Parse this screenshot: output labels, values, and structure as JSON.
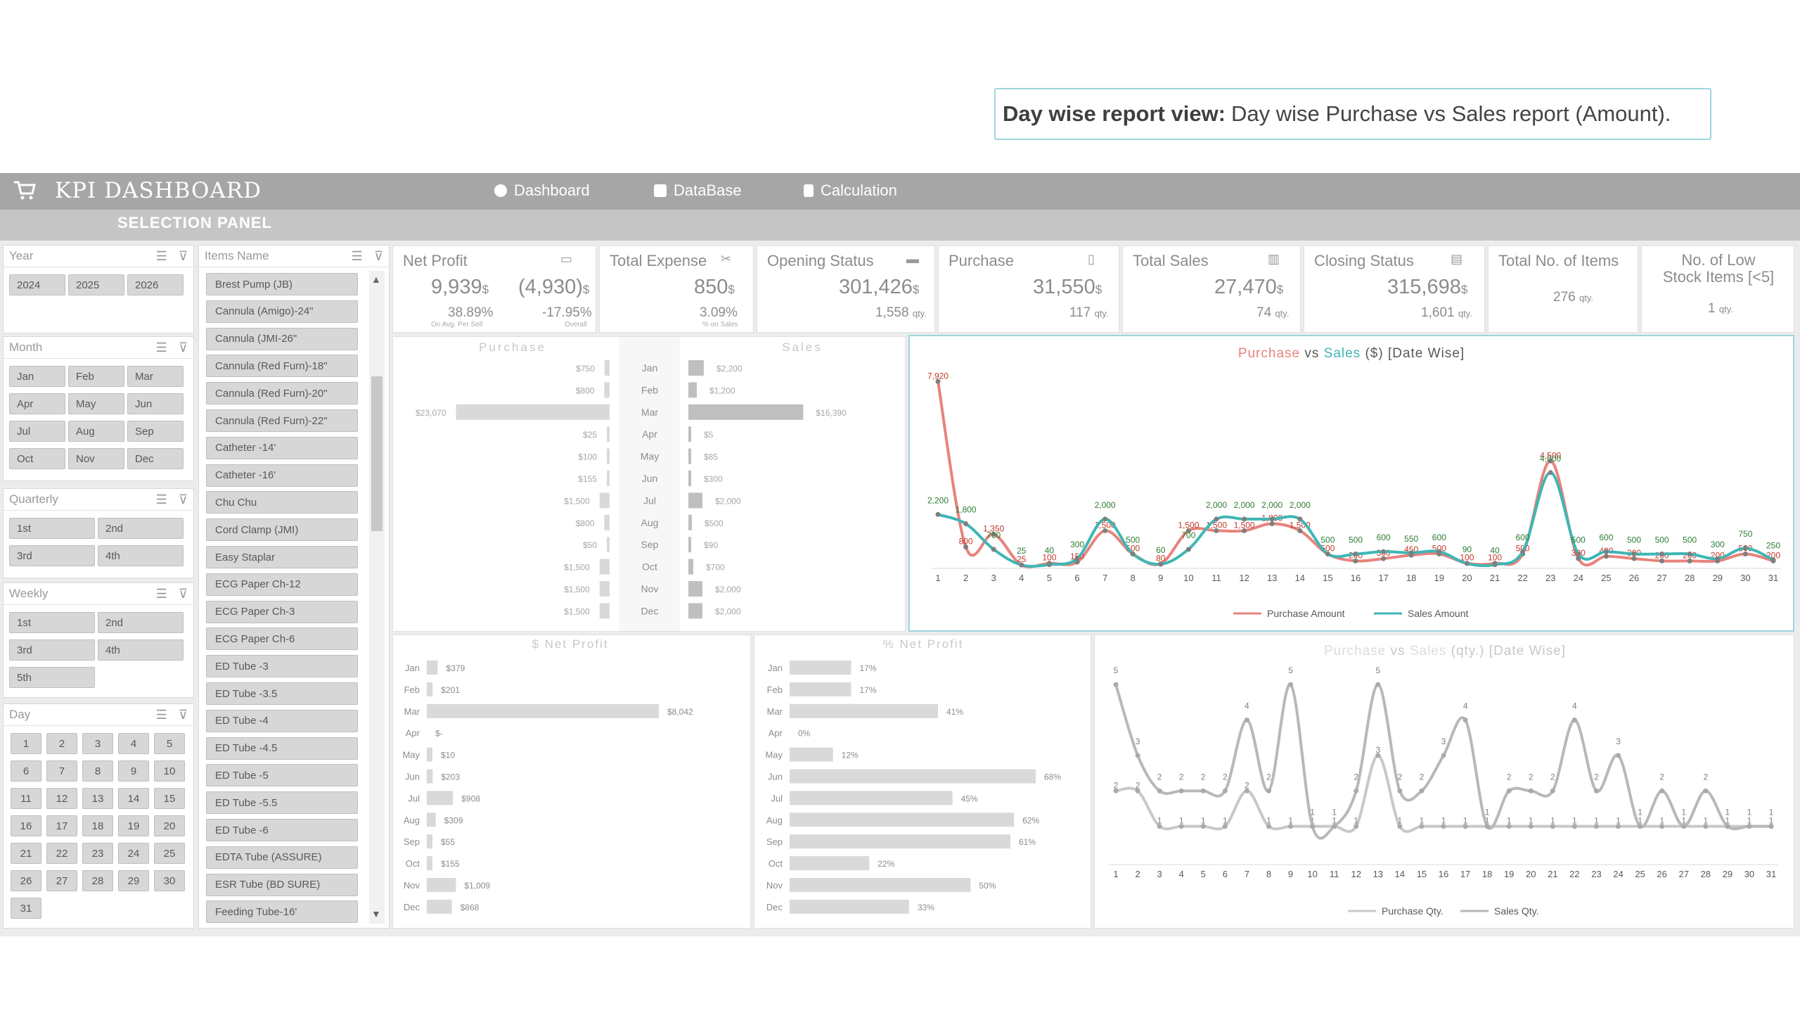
{
  "callout": {
    "bold": "Day wise report view:",
    "text": "Day wise Purchase vs Sales report (Amount)."
  },
  "header": {
    "title": "KPI DASHBOARD",
    "nav": [
      "Dashboard",
      "DataBase",
      "Calculation"
    ],
    "selection_panel": "SELECTION PANEL"
  },
  "slicers": {
    "year": {
      "title": "Year",
      "items": [
        "2024",
        "2025",
        "2026"
      ]
    },
    "month": {
      "title": "Month",
      "items": [
        "Jan",
        "Feb",
        "Mar",
        "Apr",
        "May",
        "Jun",
        "Jul",
        "Aug",
        "Sep",
        "Oct",
        "Nov",
        "Dec"
      ]
    },
    "quarterly": {
      "title": "Quarterly",
      "items": [
        "1st",
        "2nd",
        "3rd",
        "4th"
      ]
    },
    "weekly": {
      "title": "Weekly",
      "items": [
        "1st",
        "2nd",
        "3rd",
        "4th",
        "5th"
      ]
    },
    "day": {
      "title": "Day",
      "items": [
        "1",
        "2",
        "3",
        "4",
        "5",
        "6",
        "7",
        "8",
        "9",
        "10",
        "11",
        "12",
        "13",
        "14",
        "15",
        "16",
        "17",
        "18",
        "19",
        "20",
        "21",
        "22",
        "23",
        "24",
        "25",
        "26",
        "27",
        "28",
        "29",
        "30",
        "31"
      ]
    },
    "items": {
      "title": "Items Name",
      "items": [
        "Brest Pump (JB)",
        "Cannula (Amigo)-24\"",
        "Cannula (JMI-26\"",
        "Cannula (Red Furn)-18\"",
        "Cannula (Red Furn)-20\"",
        "Cannula (Red Furn)-22\"",
        "Catheter -14'",
        "Catheter -16'",
        "Chu Chu",
        "Cord Clamp (JMI)",
        "Easy Staplar",
        "ECG Paper Ch-12",
        "ECG Paper Ch-3",
        "ECG Paper Ch-6",
        "ED Tube -3",
        "ED Tube -3.5",
        "ED Tube -4",
        "ED Tube -4.5",
        "ED Tube -5",
        "ED Tube -5.5",
        "ED Tube -6",
        "EDTA Tube (ASSURE)",
        "ESR Tube (BD SURE)",
        "Feeding Tube-16'"
      ]
    }
  },
  "kpis": {
    "net_profit": {
      "title": "Net Profit",
      "value1": "9,939",
      "unit1": "$",
      "value2": "(4,930)",
      "unit2": "$",
      "pct1": "38.89%",
      "pct2": "-17.95%",
      "sub1": "On Avg. Per Sell",
      "sub2": "Overall"
    },
    "total_expense": {
      "title": "Total Expense",
      "value": "850",
      "unit": "$",
      "pct": "3.09%",
      "sub": "% on Sales"
    },
    "opening_status": {
      "title": "Opening Status",
      "value": "301,426",
      "unit": "$",
      "qty": "1,558",
      "qty_unit": "qty."
    },
    "purchase": {
      "title": "Purchase",
      "value": "31,550",
      "unit": "$",
      "qty": "117",
      "qty_unit": "qty."
    },
    "total_sales": {
      "title": "Total Sales",
      "value": "27,470",
      "unit": "$",
      "qty": "74",
      "qty_unit": "qty."
    },
    "closing_status": {
      "title": "Closing Status",
      "value": "315,698",
      "unit": "$",
      "qty": "1,601",
      "qty_unit": "qty."
    },
    "total_items": {
      "title": "Total No. of Items",
      "value": "276",
      "unit": "qty."
    },
    "low_stock": {
      "title_line1": "No. of Low",
      "title_line2": "Stock Items [<5]",
      "value": "1",
      "unit": "qty."
    }
  },
  "chart_data": [
    {
      "id": "monthly_purchase_sales",
      "type": "bar",
      "titles": {
        "left": "Purchase",
        "right": "Sales"
      },
      "categories": [
        "Jan",
        "Feb",
        "Mar",
        "Apr",
        "May",
        "Jun",
        "Jul",
        "Aug",
        "Sep",
        "Oct",
        "Nov",
        "Dec"
      ],
      "series": [
        {
          "name": "Purchase",
          "values": [
            750,
            800,
            23070,
            25,
            100,
            155,
            1500,
            800,
            50,
            1500,
            1500,
            1500
          ],
          "labels": [
            "$750",
            "$800",
            "$23,070",
            "$25",
            "$100",
            "$155",
            "$1,500",
            "$800",
            "$50",
            "$1,500",
            "$1,500",
            "$1,500"
          ]
        },
        {
          "name": "Sales",
          "values": [
            2200,
            1200,
            16390,
            5,
            85,
            300,
            2000,
            500,
            90,
            700,
            2000,
            2000
          ],
          "labels": [
            "$2,200",
            "$1,200",
            "$16,390",
            "$5",
            "$85",
            "$300",
            "$2,000",
            "$500",
            "$90",
            "$700",
            "$2,000",
            "$2,000"
          ]
        }
      ]
    },
    {
      "id": "datewise_amount",
      "type": "line",
      "title_parts": [
        "Purchase",
        "vs",
        "Sales",
        "($)",
        "[Date",
        "Wise]"
      ],
      "x": [
        1,
        2,
        3,
        4,
        5,
        6,
        7,
        8,
        9,
        10,
        11,
        12,
        13,
        14,
        15,
        16,
        17,
        18,
        19,
        20,
        21,
        22,
        23,
        24,
        25,
        26,
        27,
        28,
        29,
        30,
        31
      ],
      "series": [
        {
          "name": "Purchase Amount",
          "values": [
            7920,
            800,
            1350,
            25,
            100,
            150,
            1500,
            500,
            80,
            1500,
            1500,
            1500,
            1800,
            1500,
            500,
            200,
            300,
            450,
            500,
            100,
            100,
            500,
            4500,
            300,
            400,
            300,
            200,
            200,
            200,
            500,
            200
          ],
          "color": "#e8837c"
        },
        {
          "name": "Sales Amount",
          "values": [
            2200,
            1800,
            700,
            25,
            40,
            300,
            2000,
            500,
            60,
            700,
            2000,
            2000,
            2000,
            2000,
            500,
            500,
            600,
            550,
            600,
            90,
            40,
            600,
            4000,
            500,
            600,
            500,
            500,
            500,
            300,
            750,
            250
          ],
          "color": "#3fb6b5"
        }
      ],
      "point_labels": {
        "Purchase Amount": [
          "7,920",
          "800",
          "1,350",
          "25",
          "100",
          "150",
          "1,500",
          "500",
          "80",
          "1,500",
          "1,500",
          "1,500",
          "1,800",
          "1,500",
          "500",
          "200",
          "300",
          "450",
          "500",
          "100",
          "100",
          "500",
          "4,500",
          "300",
          "400",
          "300",
          "200",
          "200",
          "200",
          "500",
          "200"
        ],
        "Sales Amount": [
          "2,200",
          "1,800",
          "700",
          "25",
          "40",
          "300",
          "2,000",
          "500",
          "60",
          "700",
          "2,000",
          "2,000",
          "2,000",
          "2,000",
          "500",
          "500",
          "600",
          "550",
          "600",
          "90",
          "40",
          "600",
          "4,000",
          "500",
          "600",
          "500",
          "500",
          "500",
          "300",
          "750",
          "250"
        ]
      }
    },
    {
      "id": "monthly_net_profit_usd",
      "type": "bar",
      "title": "$ Net Profit",
      "categories": [
        "Jan",
        "Feb",
        "Mar",
        "Apr",
        "May",
        "Jun",
        "Jul",
        "Aug",
        "Sep",
        "Oct",
        "Nov",
        "Dec"
      ],
      "values": [
        379,
        201,
        8042,
        0,
        10,
        203,
        908,
        309,
        55,
        155,
        1009,
        868
      ],
      "labels": [
        "$379",
        "$201",
        "$8,042",
        "$-",
        "$10",
        "$203",
        "$908",
        "$309",
        "$55",
        "$155",
        "$1,009",
        "$868"
      ]
    },
    {
      "id": "monthly_net_profit_pct",
      "type": "bar",
      "title": "% Net Profit",
      "categories": [
        "Jan",
        "Feb",
        "Mar",
        "Apr",
        "May",
        "Jun",
        "Jul",
        "Aug",
        "Sep",
        "Oct",
        "Nov",
        "Dec"
      ],
      "values": [
        17,
        17,
        41,
        0,
        12,
        68,
        45,
        62,
        61,
        22,
        50,
        33
      ],
      "labels": [
        "17%",
        "17%",
        "41%",
        "0%",
        "12%",
        "68%",
        "45%",
        "62%",
        "61%",
        "22%",
        "50%",
        "33%"
      ]
    },
    {
      "id": "datewise_qty",
      "type": "line",
      "title_parts": [
        "Purchase",
        "vs",
        "Sales",
        "(qty.)",
        "[Date",
        "Wise]"
      ],
      "x": [
        1,
        2,
        3,
        4,
        5,
        6,
        7,
        8,
        9,
        10,
        11,
        12,
        13,
        14,
        15,
        16,
        17,
        18,
        19,
        20,
        21,
        22,
        23,
        24,
        25,
        26,
        27,
        28,
        29,
        30,
        31
      ],
      "series": [
        {
          "name": "Purchase Qty.",
          "values": [
            2,
            2,
            1,
            1,
            1,
            1,
            2,
            1,
            1,
            1,
            1,
            1,
            3,
            1,
            1,
            1,
            1,
            1,
            1,
            1,
            1,
            1,
            1,
            1,
            1,
            1,
            1,
            1,
            1,
            1,
            1
          ],
          "color": "#c8c8c8"
        },
        {
          "name": "Sales Qty.",
          "values": [
            5,
            3,
            2,
            2,
            2,
            2,
            4,
            2,
            5,
            1,
            1,
            2,
            5,
            2,
            2,
            3,
            4,
            1,
            2,
            2,
            2,
            4,
            2,
            3,
            1,
            2,
            1,
            2,
            1,
            1,
            1
          ],
          "color": "#b8b8b8"
        }
      ],
      "point_labels": {
        "Purchase Qty.": [
          "2",
          "2",
          "1",
          "1",
          "1",
          "1",
          "2",
          "1",
          "1",
          "1",
          "1",
          "1",
          "3",
          "1",
          "1",
          "1",
          "1",
          "1",
          "1",
          "1",
          "1",
          "1",
          "1",
          "1",
          "1",
          "1",
          "1",
          "1",
          "1",
          "1",
          "1"
        ],
        "Sales Qty.": [
          "5",
          "3",
          "2",
          "2",
          "2",
          "2",
          "4",
          "2",
          "5",
          "1",
          "1",
          "2",
          "5",
          "2",
          "2",
          "3",
          "4",
          "1",
          "2",
          "2",
          "2",
          "4",
          "2",
          "3",
          "1",
          "2",
          "1",
          "2",
          "1",
          "1",
          "1"
        ]
      }
    }
  ]
}
